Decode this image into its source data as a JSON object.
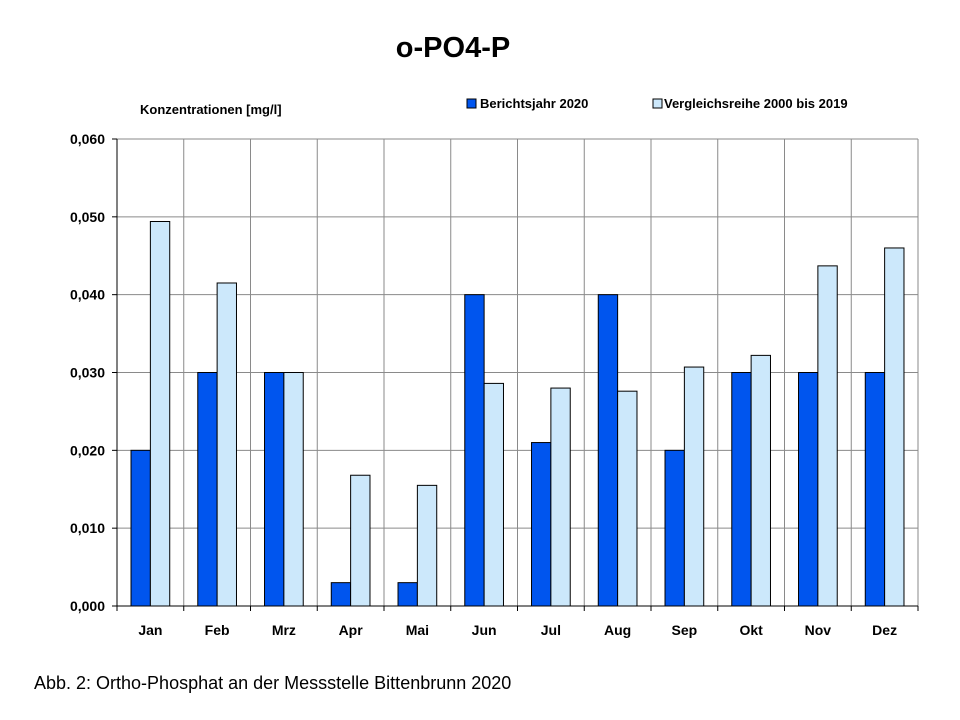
{
  "chart_data": {
    "type": "bar",
    "title": "o-PO4-P",
    "ylabel": "Konzentrationen [mg/l]",
    "xlabel": "",
    "categories": [
      "Jan",
      "Feb",
      "Mrz",
      "Apr",
      "Mai",
      "Jun",
      "Jul",
      "Aug",
      "Sep",
      "Okt",
      "Nov",
      "Dez"
    ],
    "series": [
      {
        "name": "Berichtsjahr 2020",
        "color": "#0055ee",
        "values": [
          0.02,
          0.03,
          0.03,
          0.003,
          0.003,
          0.04,
          0.021,
          0.04,
          0.02,
          0.03,
          0.03,
          0.03
        ]
      },
      {
        "name": "Vergleichsreihe 2000 bis 2019",
        "color": "#cce8fb",
        "values": [
          0.0494,
          0.0415,
          0.03,
          0.0168,
          0.0155,
          0.0286,
          0.028,
          0.0276,
          0.0307,
          0.0322,
          0.0437,
          0.046
        ]
      }
    ],
    "ylim": [
      0,
      0.06
    ],
    "yticks": [
      "0,000",
      "0,010",
      "0,020",
      "0,030",
      "0,040",
      "0,050",
      "0,060"
    ],
    "grid": true,
    "legend_position": "top-right"
  },
  "caption": "Abb. 2: Ortho-Phosphat an der Messstelle Bittenbrunn 2020"
}
